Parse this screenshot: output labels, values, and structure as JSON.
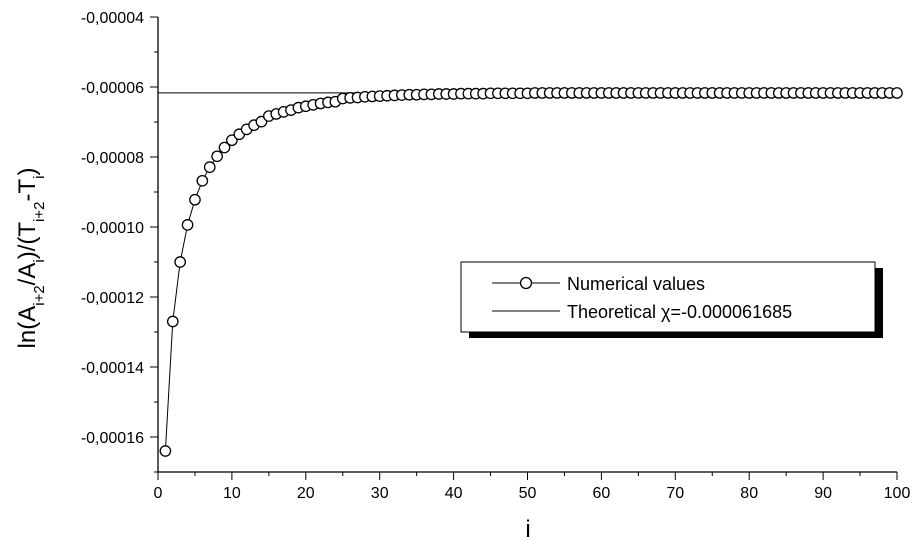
{
  "chart_data": {
    "type": "scatter",
    "title": "",
    "xlabel": "i",
    "ylabel": {
      "base": "ln(A",
      "sub1": "i+2",
      "mid1": "/A",
      "sub2": "i",
      "mid2": ")/(T",
      "sub3": "i+2",
      "mid3": "-T",
      "sub4": "i",
      "end": ")"
    },
    "xlim": [
      0,
      100
    ],
    "ylim": [
      -0.00017,
      -4e-05
    ],
    "x_ticks": [
      0,
      10,
      20,
      30,
      40,
      50,
      60,
      70,
      80,
      90,
      100
    ],
    "x_tick_labels": [
      "0",
      "10",
      "20",
      "30",
      "40",
      "50",
      "60",
      "70",
      "80",
      "90",
      "100"
    ],
    "y_ticks": [
      -0.00016,
      -0.00014,
      -0.00012,
      -0.0001,
      -8e-05,
      -6e-05,
      -4e-05
    ],
    "y_tick_labels": [
      "-0,00016",
      "-0,00014",
      "-0,00012",
      "-0,00010",
      "-0,00008",
      "-0,00006",
      "-0,00004"
    ],
    "grid": false,
    "legend_position": "center-right",
    "series": [
      {
        "name": "Numerical values",
        "style": "line-with-open-circles",
        "color": "#000000",
        "x": [
          1,
          2,
          3,
          4,
          5,
          6,
          7,
          8,
          9,
          10,
          11,
          12,
          13,
          14,
          15,
          16,
          17,
          18,
          19,
          20,
          21,
          22,
          23,
          24,
          25,
          26,
          27,
          28,
          29,
          30,
          31,
          32,
          33,
          34,
          35,
          36,
          37,
          38,
          39,
          40,
          41,
          42,
          43,
          44,
          45,
          46,
          47,
          48,
          49,
          50,
          51,
          52,
          53,
          54,
          55,
          56,
          57,
          58,
          59,
          60,
          61,
          62,
          63,
          64,
          65,
          66,
          67,
          68,
          69,
          70,
          71,
          72,
          73,
          74,
          75,
          76,
          77,
          78,
          79,
          80,
          81,
          82,
          83,
          84,
          85,
          86,
          87,
          88,
          89,
          90,
          91,
          92,
          93,
          94,
          95,
          96,
          97,
          98,
          99,
          100
        ],
        "y": [
          -0.000164,
          -0.000127,
          -0.00011,
          -9.94e-05,
          -9.22e-05,
          -8.68e-05,
          -8.29e-05,
          -7.98e-05,
          -7.73e-05,
          -7.52e-05,
          -7.35e-05,
          -7.21e-05,
          -7.09e-05,
          -6.99e-05,
          -6.83e-05,
          -6.77e-05,
          -6.71e-05,
          -6.66e-05,
          -6.59e-05,
          -6.55e-05,
          -6.51e-05,
          -6.47e-05,
          -6.44e-05,
          -6.42e-05,
          -6.33e-05,
          -6.31e-05,
          -6.3e-05,
          -6.28e-05,
          -6.27e-05,
          -6.26e-05,
          -6.25e-05,
          -6.24e-05,
          -6.23e-05,
          -6.22e-05,
          -6.22e-05,
          -6.21e-05,
          -6.21e-05,
          -6.2e-05,
          -6.2e-05,
          -6.2e-05,
          -6.19e-05,
          -6.19e-05,
          -6.19e-05,
          -6.19e-05,
          -6.18e-05,
          -6.18e-05,
          -6.18e-05,
          -6.18e-05,
          -6.18e-05,
          -6.18e-05,
          -6.17e-05,
          -6.17e-05,
          -6.17e-05,
          -6.17e-05,
          -6.17e-05,
          -6.17e-05,
          -6.17e-05,
          -6.17e-05,
          -6.17e-05,
          -6.17e-05,
          -6.17e-05,
          -6.17e-05,
          -6.17e-05,
          -6.17e-05,
          -6.17e-05,
          -6.17e-05,
          -6.17e-05,
          -6.17e-05,
          -6.17e-05,
          -6.17e-05,
          -6.17e-05,
          -6.17e-05,
          -6.17e-05,
          -6.17e-05,
          -6.17e-05,
          -6.17e-05,
          -6.17e-05,
          -6.17e-05,
          -6.17e-05,
          -6.17e-05,
          -6.17e-05,
          -6.17e-05,
          -6.17e-05,
          -6.17e-05,
          -6.17e-05,
          -6.17e-05,
          -6.17e-05,
          -6.17e-05,
          -6.17e-05,
          -6.17e-05,
          -6.17e-05,
          -6.17e-05,
          -6.17e-05,
          -6.17e-05,
          -6.17e-05,
          -6.17e-05,
          -6.17e-05,
          -6.17e-05,
          -6.17e-05,
          -6.17e-05
        ]
      },
      {
        "name": "Theoretical χ=-0.000061685",
        "style": "line",
        "color": "#000000",
        "value": -6.1685e-05
      }
    ]
  }
}
